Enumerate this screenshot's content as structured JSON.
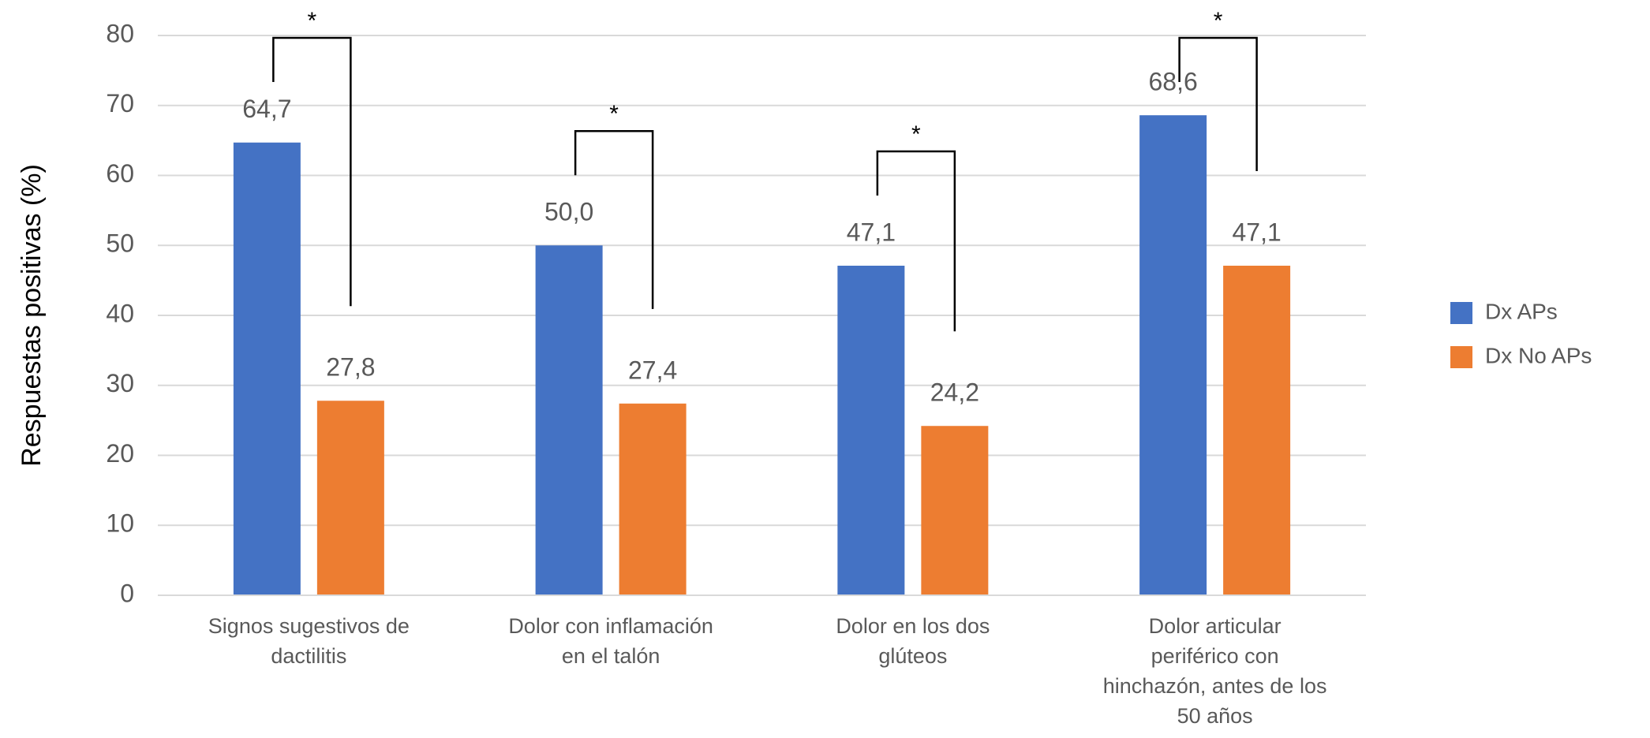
{
  "chart_data": {
    "type": "bar",
    "y_label": "Respuestas positivas (%)",
    "categories": [
      "Signos sugestivos de\ndactilitis",
      "Dolor con inflamación\nen el talón",
      "Dolor en los dos\nglúteos",
      "Dolor articular\nperiférico con\nhinchazón, antes de los\n50 años"
    ],
    "series": [
      {
        "name": "Dx APs",
        "color": "#4472c4",
        "values": [
          64.7,
          50.0,
          47.1,
          68.6
        ],
        "value_labels": [
          "64,7",
          "50,0",
          "47,1",
          "68,6"
        ]
      },
      {
        "name": "Dx No APs",
        "color": "#ed7d31",
        "values": [
          27.8,
          27.4,
          24.2,
          47.1
        ],
        "value_labels": [
          "27,8",
          "27,4",
          "24,2",
          "47,1"
        ]
      }
    ],
    "annotations": [
      "*",
      "*",
      "*",
      "*"
    ],
    "ylim": [
      0,
      80
    ],
    "yticks": [
      0,
      10,
      20,
      30,
      40,
      50,
      60,
      70,
      80
    ],
    "grid": true,
    "legend": "right"
  }
}
